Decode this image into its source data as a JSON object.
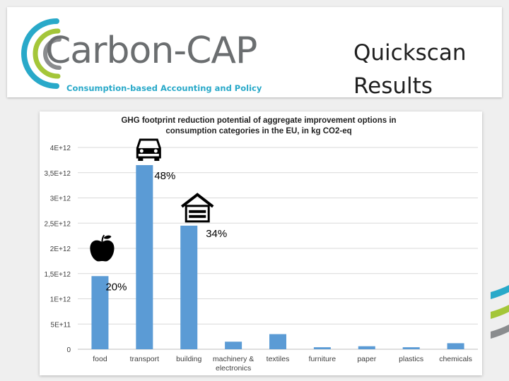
{
  "header": {
    "logo_text": "Carbon-CAP",
    "logo_tagline": "Consumption-based Accounting and Policy",
    "title_line1": "Quickscan",
    "title_line2": "Results"
  },
  "colors": {
    "bar": "#5b9bd5",
    "logo_green": "#a4c639",
    "logo_blue": "#29a9c9",
    "logo_gray": "#8a8c8e"
  },
  "chart_data": {
    "type": "bar",
    "title_line1": "GHG footprint reduction potential of aggregate improvement options in",
    "title_line2": "consumption categories in the EU, in kg CO2-eq",
    "categories": [
      "food",
      "transport",
      "building",
      "machinery & electronics",
      "textiles",
      "furniture",
      "paper",
      "plastics",
      "chemicals"
    ],
    "category_labels": [
      [
        "food"
      ],
      [
        "transport"
      ],
      [
        "building"
      ],
      [
        "machinery &",
        "electronics"
      ],
      [
        "textiles"
      ],
      [
        "furniture"
      ],
      [
        "paper"
      ],
      [
        "plastics"
      ],
      [
        "chemicals"
      ]
    ],
    "values": [
      1450000000000.0,
      3650000000000.0,
      2450000000000.0,
      150000000000.0,
      300000000000.0,
      40000000000.0,
      60000000000.0,
      40000000000.0,
      120000000000.0
    ],
    "ylim": [
      0,
      4000000000000.0
    ],
    "yticks": [
      0,
      500000000000.0,
      1000000000000.0,
      1500000000000.0,
      2000000000000.0,
      2500000000000.0,
      3000000000000.0,
      3500000000000.0,
      4000000000000.0
    ],
    "ytick_labels": [
      "0",
      "5E+11",
      "1E+12",
      "1,5E+12",
      "2E+12",
      "2,5E+12",
      "3E+12",
      "3,5E+12",
      "4E+12"
    ],
    "grid": true,
    "annotations": [
      {
        "category": "food",
        "text": "20%",
        "icon": "apple-icon"
      },
      {
        "category": "transport",
        "text": "48%",
        "icon": "car-icon"
      },
      {
        "category": "building",
        "text": "34%",
        "icon": "house-icon"
      }
    ]
  }
}
